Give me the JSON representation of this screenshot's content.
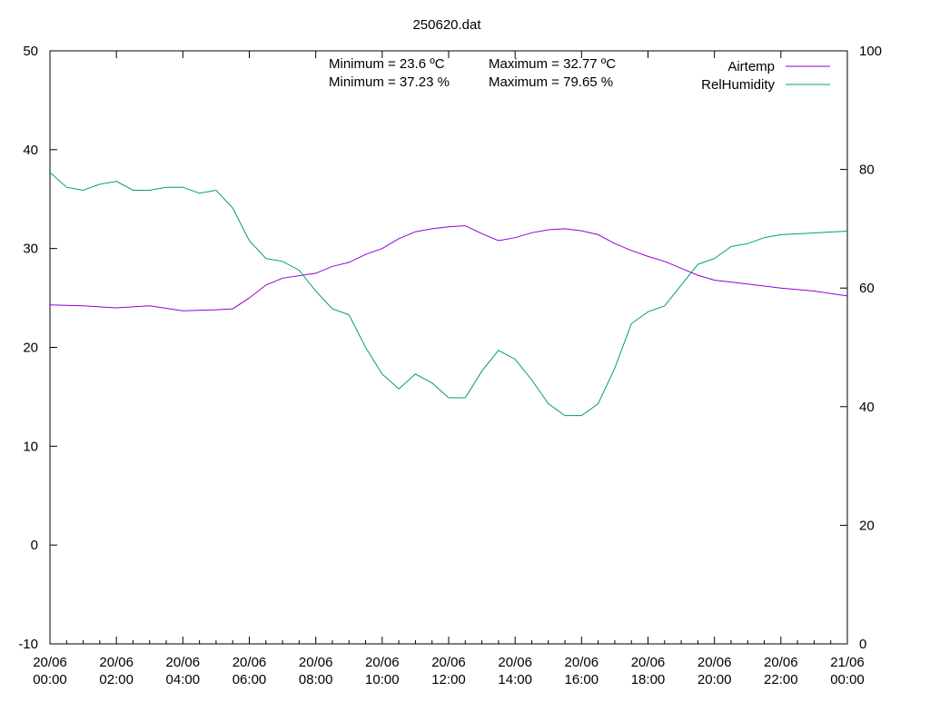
{
  "chart_data": {
    "type": "line",
    "title": "250620.dat",
    "xlabel": "",
    "ylabel": "",
    "y2label": "",
    "x_range": [
      "2020-06-20 00:00",
      "2020-06-21 00:00"
    ],
    "ylim": [
      -10,
      50
    ],
    "y2lim": [
      0,
      100
    ],
    "y_ticks": [
      "-10",
      "0",
      "10",
      "20",
      "30",
      "40",
      "50"
    ],
    "y2_ticks": [
      "0",
      "20",
      "40",
      "60",
      "80",
      "100"
    ],
    "x_ticks": [
      {
        "date": "20/06",
        "time": "00:00"
      },
      {
        "date": "20/06",
        "time": "02:00"
      },
      {
        "date": "20/06",
        "time": "04:00"
      },
      {
        "date": "20/06",
        "time": "06:00"
      },
      {
        "date": "20/06",
        "time": "08:00"
      },
      {
        "date": "20/06",
        "time": "10:00"
      },
      {
        "date": "20/06",
        "time": "12:00"
      },
      {
        "date": "20/06",
        "time": "14:00"
      },
      {
        "date": "20/06",
        "time": "16:00"
      },
      {
        "date": "20/06",
        "time": "18:00"
      },
      {
        "date": "20/06",
        "time": "20:00"
      },
      {
        "date": "20/06",
        "time": "22:00"
      },
      {
        "date": "21/06",
        "time": "00:00"
      }
    ],
    "grid": false,
    "legend_position": "top-right",
    "annotations": {
      "temp_min": "Minimum = 23.6 ºC",
      "temp_max": "Maximum = 32.77 ºC",
      "hum_min": "Minimum = 37.23 %",
      "hum_max": "Maximum = 79.65 %"
    },
    "series": [
      {
        "name": "Airtemp",
        "axis": "y1",
        "color": "#9400d3",
        "x": [
          "00:00",
          "01:00",
          "02:00",
          "03:00",
          "04:00",
          "05:00",
          "05:30",
          "06:00",
          "06:30",
          "07:00",
          "08:00",
          "08:30",
          "09:00",
          "09:30",
          "10:00",
          "10:30",
          "11:00",
          "11:30",
          "12:00",
          "12:30",
          "13:00",
          "13:30",
          "14:00",
          "14:30",
          "15:00",
          "15:30",
          "16:00",
          "16:30",
          "17:00",
          "17:30",
          "18:00",
          "18:30",
          "19:00",
          "19:30",
          "20:00",
          "21:00",
          "22:00",
          "23:00",
          "24:00"
        ],
        "values": [
          24.3,
          24.2,
          24.0,
          24.2,
          23.7,
          23.8,
          23.9,
          25.0,
          26.3,
          27.0,
          27.5,
          28.2,
          28.6,
          29.4,
          30.0,
          31.0,
          31.7,
          32.0,
          32.2,
          32.3,
          31.5,
          30.8,
          31.1,
          31.6,
          31.9,
          32.0,
          31.8,
          31.4,
          30.5,
          29.8,
          29.2,
          28.7,
          28.0,
          27.3,
          26.8,
          26.4,
          26.0,
          25.7,
          25.2
        ]
      },
      {
        "name": "RelHumidity",
        "axis": "y2",
        "color": "#009e73",
        "x": [
          "00:00",
          "00:30",
          "01:00",
          "01:30",
          "02:00",
          "02:30",
          "03:00",
          "03:30",
          "04:00",
          "04:30",
          "05:00",
          "05:30",
          "06:00",
          "06:30",
          "07:00",
          "07:30",
          "08:00",
          "08:30",
          "09:00",
          "09:30",
          "10:00",
          "10:30",
          "11:00",
          "11:30",
          "12:00",
          "12:30",
          "13:00",
          "13:30",
          "14:00",
          "14:30",
          "15:00",
          "15:30",
          "16:00",
          "16:30",
          "17:00",
          "17:30",
          "18:00",
          "18:30",
          "19:00",
          "19:30",
          "20:00",
          "20:30",
          "21:00",
          "21:30",
          "22:00",
          "23:00",
          "24:00"
        ],
        "values": [
          79.5,
          77.0,
          76.5,
          77.5,
          78.0,
          76.5,
          76.5,
          77.0,
          77.0,
          76.0,
          76.5,
          73.5,
          68.0,
          65.0,
          64.5,
          63.0,
          59.5,
          56.5,
          55.5,
          50.0,
          45.5,
          43.0,
          45.5,
          44.0,
          41.5,
          41.5,
          46.0,
          49.5,
          48.0,
          44.5,
          40.5,
          38.5,
          38.5,
          40.5,
          46.5,
          54.0,
          56.0,
          57.0,
          60.5,
          64.0,
          65.0,
          67.0,
          67.5,
          68.5,
          69.0,
          69.3,
          69.6
        ]
      }
    ]
  }
}
